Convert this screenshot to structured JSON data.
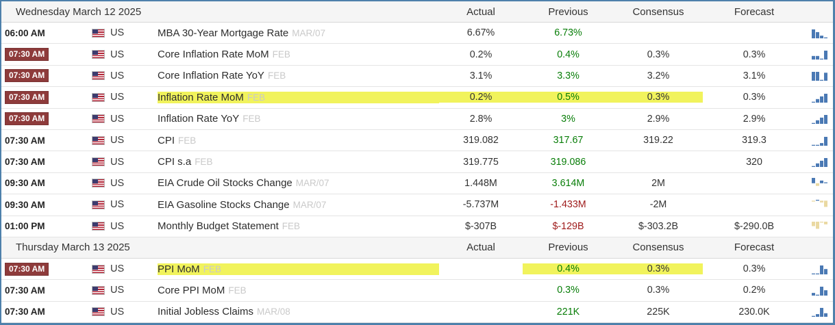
{
  "table": {
    "columns": {
      "actual": "Actual",
      "previous": "Previous",
      "consensus": "Consensus",
      "forecast": "Forecast"
    },
    "colors": {
      "border_blue": "#4e80ab",
      "badge_red": "#8e3b3b",
      "highlight_yellow": "#f1f35c",
      "value_green": "#077d07",
      "value_red": "#9e1a1a",
      "bar_blue": "#4a79b4",
      "bar_tan": "#ead9a2"
    },
    "sections": [
      {
        "date": "Wednesday March 12 2025",
        "rows": [
          {
            "time": "06:00 AM",
            "badge": false,
            "country": "US",
            "event": "MBA 30-Year Mortgage Rate",
            "ref": "MAR/07",
            "actual": "6.67%",
            "previous": "6.73%",
            "previous_color": "green",
            "consensus": "",
            "forecast": "",
            "highlight": false,
            "bars": [
              10,
              7,
              3,
              1
            ]
          },
          {
            "time": "07:30 AM",
            "badge": true,
            "country": "US",
            "event": "Core Inflation Rate MoM",
            "ref": "FEB",
            "actual": "0.2%",
            "previous": "0.4%",
            "previous_color": "green",
            "consensus": "0.3%",
            "forecast": "0.3%",
            "highlight": false,
            "bars": [
              4,
              4,
              1,
              10
            ]
          },
          {
            "time": "07:30 AM",
            "badge": true,
            "country": "US",
            "event": "Core Inflation Rate YoY",
            "ref": "FEB",
            "actual": "3.1%",
            "previous": "3.3%",
            "previous_color": "green",
            "consensus": "3.2%",
            "forecast": "3.1%",
            "highlight": false,
            "bars": [
              10,
              10,
              1,
              9
            ]
          },
          {
            "time": "07:30 AM",
            "badge": true,
            "country": "US",
            "event": "Inflation Rate MoM",
            "ref": "FEB",
            "actual": "0.2%",
            "previous": "0.5%",
            "previous_color": "green",
            "consensus": "0.3%",
            "forecast": "0.3%",
            "highlight": true,
            "bars": [
              1,
              4,
              7,
              10
            ]
          },
          {
            "time": "07:30 AM",
            "badge": true,
            "country": "US",
            "event": "Inflation Rate YoY",
            "ref": "FEB",
            "actual": "2.8%",
            "previous": "3%",
            "previous_color": "green",
            "consensus": "2.9%",
            "forecast": "2.9%",
            "highlight": false,
            "bars": [
              1,
              4,
              7,
              10
            ]
          },
          {
            "time": "07:30 AM",
            "badge": false,
            "country": "US",
            "event": "CPI",
            "ref": "FEB",
            "actual": "319.082",
            "previous": "317.67",
            "previous_color": "green",
            "consensus": "319.22",
            "forecast": "319.3",
            "highlight": false,
            "bars": [
              1,
              1,
              3,
              10
            ]
          },
          {
            "time": "07:30 AM",
            "badge": false,
            "country": "US",
            "event": "CPI s.a",
            "ref": "FEB",
            "actual": "319.775",
            "previous": "319.086",
            "previous_color": "green",
            "consensus": "",
            "forecast": "320",
            "highlight": false,
            "bars": [
              1,
              4,
              7,
              10
            ]
          },
          {
            "time": "09:30 AM",
            "badge": false,
            "country": "US",
            "event": "EIA Crude Oil Stocks Change",
            "ref": "MAR/07",
            "actual": "1.448M",
            "previous": "3.614M",
            "previous_color": "green",
            "consensus": "2M",
            "forecast": "",
            "highlight": false,
            "bars": [
              6,
              -3,
              3,
              1
            ]
          },
          {
            "time": "09:30 AM",
            "badge": false,
            "country": "US",
            "event": "EIA Gasoline Stocks Change",
            "ref": "MAR/07",
            "actual": "-5.737M",
            "previous": "-1.433M",
            "previous_color": "red",
            "consensus": "-2M",
            "forecast": "",
            "highlight": false,
            "bars": [
              -1,
              1,
              -2,
              -7
            ]
          },
          {
            "time": "01:00 PM",
            "badge": false,
            "country": "US",
            "event": "Monthly Budget Statement",
            "ref": "FEB",
            "actual": "$-307B",
            "previous": "$-129B",
            "previous_color": "red",
            "consensus": "$-303.2B",
            "forecast": "$-290.0B",
            "highlight": false,
            "bars": [
              -5,
              -8,
              -1,
              -3
            ]
          }
        ]
      },
      {
        "date": "Thursday March 13 2025",
        "rows": [
          {
            "time": "07:30 AM",
            "badge": true,
            "country": "US",
            "event": "PPI MoM",
            "ref": "FEB",
            "actual": "",
            "previous": "0.4%",
            "previous_color": "green",
            "consensus": "0.3%",
            "forecast": "0.3%",
            "highlight": true,
            "bars": [
              1,
              1,
              10,
              6
            ]
          },
          {
            "time": "07:30 AM",
            "badge": false,
            "country": "US",
            "event": "Core PPI MoM",
            "ref": "FEB",
            "actual": "",
            "previous": "0.3%",
            "previous_color": "green",
            "consensus": "0.3%",
            "forecast": "0.2%",
            "highlight": false,
            "bars": [
              3,
              1,
              10,
              6
            ]
          },
          {
            "time": "07:30 AM",
            "badge": false,
            "country": "US",
            "event": "Initial Jobless Claims",
            "ref": "MAR/08",
            "actual": "",
            "previous": "221K",
            "previous_color": "green",
            "consensus": "225K",
            "forecast": "230.0K",
            "highlight": false,
            "bars": [
              1,
              3,
              10,
              4
            ]
          }
        ]
      }
    ]
  }
}
